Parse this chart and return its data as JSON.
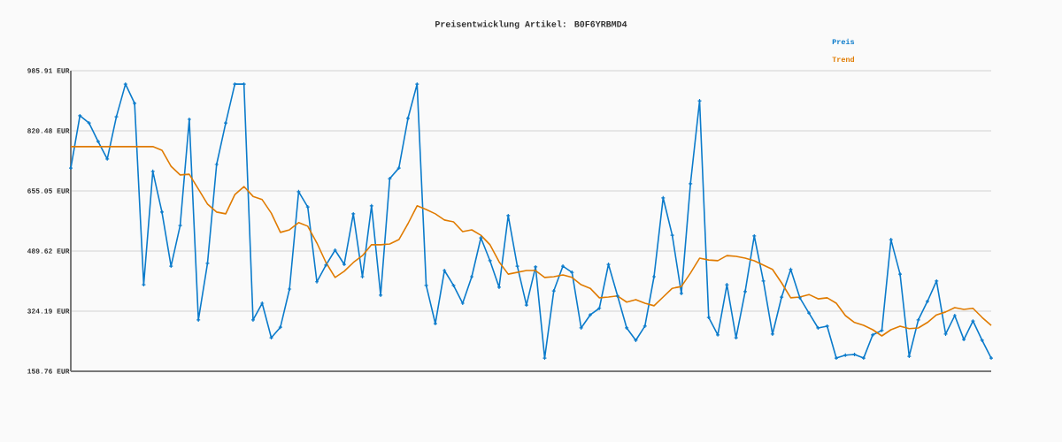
{
  "chart_data": {
    "type": "line",
    "title": "Preisentwicklung Artikel: B0F6YRBMD4",
    "categories": [
      null,
      null,
      null,
      null,
      null,
      null,
      null,
      null,
      null,
      null,
      null,
      null,
      null,
      null,
      null,
      null,
      null,
      null,
      null,
      null,
      null,
      null,
      null,
      null,
      null,
      null,
      null,
      null,
      null,
      null,
      null,
      null,
      null,
      null,
      null,
      null,
      null,
      null,
      null,
      null,
      null,
      null,
      null,
      null,
      null,
      null,
      null,
      null,
      null,
      null,
      null,
      null,
      null,
      null,
      null,
      null,
      null,
      null,
      null,
      null,
      null,
      null,
      null,
      null,
      null,
      null,
      null,
      null,
      null,
      null,
      null,
      null,
      null,
      null,
      null,
      null,
      null,
      null,
      null,
      null,
      null,
      null,
      null,
      null,
      null,
      null,
      null,
      null,
      null,
      null,
      null,
      null,
      null,
      null,
      null,
      null,
      null,
      null,
      null,
      null,
      null,
      null
    ],
    "series": [
      {
        "name": "Preis",
        "color": "#0b7bcb",
        "marker": "cross",
        "values": [
          718,
          862,
          842,
          791,
          743,
          859,
          949,
          896,
          397,
          709,
          597,
          448,
          560,
          852,
          300,
          456,
          728,
          842,
          949,
          949,
          300,
          346,
          251,
          280,
          385,
          653,
          611,
          405,
          451,
          492,
          453,
          592,
          419,
          614,
          368,
          689,
          718,
          855,
          949,
          395,
          290,
          436,
          395,
          346,
          419,
          526,
          463,
          390,
          587,
          448,
          341,
          446,
          195,
          380,
          448,
          431,
          278,
          314,
          332,
          453,
          366,
          278,
          244,
          283,
          419,
          636,
          533,
          373,
          675,
          903,
          307,
          259,
          397,
          251,
          378,
          531,
          407,
          261,
          363,
          439,
          361,
          319,
          278,
          283,
          195,
          203,
          205,
          195,
          259,
          271,
          521,
          426,
          200,
          300,
          351,
          407,
          261,
          312,
          246,
          297,
          244,
          195
        ]
      },
      {
        "name": "Trend",
        "color": "#e07b00",
        "values": [
          777,
          777,
          777,
          777,
          777,
          777,
          777,
          777,
          777,
          777,
          767,
          723,
          699,
          701,
          660,
          619,
          597,
          592,
          645,
          667,
          640,
          631,
          594,
          541,
          548,
          568,
          558,
          512,
          458,
          417,
          434,
          458,
          477,
          507,
          507,
          509,
          521,
          565,
          614,
          604,
          592,
          575,
          570,
          543,
          548,
          533,
          507,
          460,
          426,
          431,
          436,
          436,
          417,
          419,
          424,
          417,
          397,
          387,
          361,
          363,
          366,
          349,
          356,
          346,
          339,
          363,
          387,
          392,
          429,
          470,
          465,
          463,
          477,
          475,
          470,
          463,
          451,
          439,
          402,
          361,
          363,
          370,
          358,
          361,
          346,
          312,
          293,
          285,
          273,
          256,
          273,
          283,
          276,
          278,
          293,
          314,
          322,
          334,
          329,
          332,
          307,
          285
        ]
      }
    ],
    "ylim": [
      158.76,
      985.91
    ],
    "yticks": [
      {
        "value": 158.76,
        "label": "158.76 EUR"
      },
      {
        "value": 324.19,
        "label": "324.19 EUR"
      },
      {
        "value": 489.62,
        "label": "489.62 EUR"
      },
      {
        "value": 655.05,
        "label": "655.05 EUR"
      },
      {
        "value": 820.48,
        "label": "820.48 EUR"
      },
      {
        "value": 985.91,
        "label": "985.91 EUR"
      }
    ],
    "grid": "y",
    "legend": "top right"
  }
}
